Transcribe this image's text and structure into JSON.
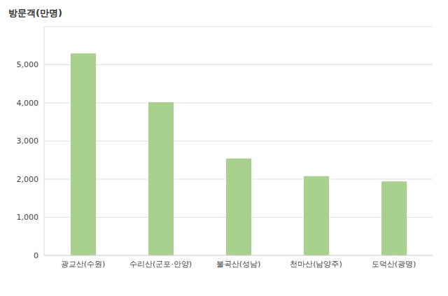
{
  "chart_data": {
    "type": "bar",
    "title": "방문객(만명)",
    "categories": [
      "광교산(수원)",
      "수리산(군포·안양)",
      "불곡산(성남)",
      "천마산(남양주)",
      "도덕산(광명)"
    ],
    "values": [
      5300,
      4020,
      2540,
      2080,
      1940
    ],
    "color": "#a9d18e",
    "ylim": [
      0,
      6000
    ],
    "yticks": [
      0,
      {
        "value": 1000,
        "label": "1,000"
      },
      {
        "value": 2000,
        "label": "2,000"
      },
      {
        "value": 3000,
        "label": "3,000"
      },
      {
        "value": 4000,
        "label": "4,000"
      },
      {
        "value": 5000,
        "label": "5,000"
      }
    ],
    "grid": true
  }
}
